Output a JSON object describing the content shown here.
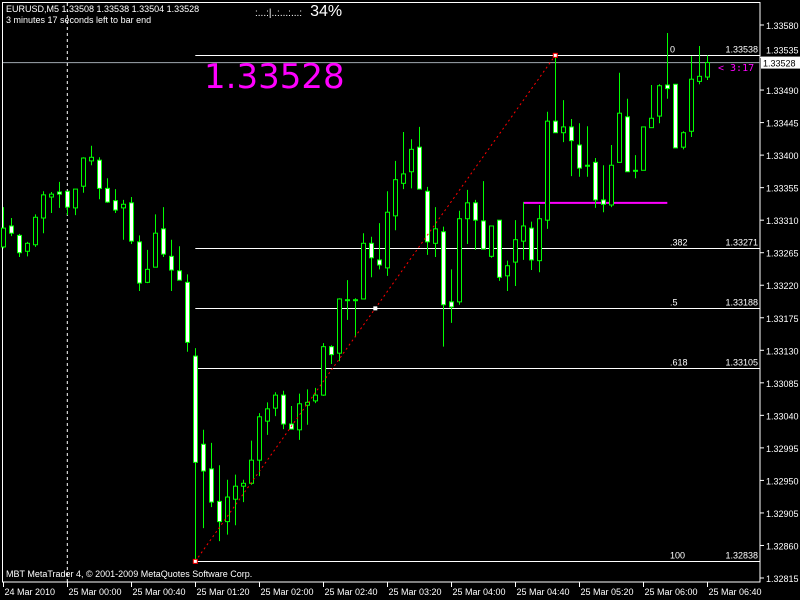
{
  "header": {
    "symbol_line": "EURUSD,M5  1.33508 1.33538 1.33504 1.33528",
    "countdown_line": "3 minutes 17 seconds left to bar end",
    "progress_dots": ":...:|..:...:...:",
    "progress_percent": "34%",
    "big_price": "1.33528",
    "bar_timer": "< 3:17",
    "copyright": "MBT MetaTrader 4, © 2001-2009 MetaQuotes Software Corp."
  },
  "colors": {
    "background": "#000000",
    "candle_outline": "#00ff00",
    "bear_body": "#ffffff",
    "bull_body": "#000000",
    "fib_lines": "#ffffff",
    "trendline": "#ff0000",
    "highlight": "#ff00ff",
    "bid_line": "#a0a8b0"
  },
  "chart_data": {
    "type": "candlestick",
    "symbol": "EURUSD",
    "timeframe": "M5",
    "ylim": [
      1.32815,
      1.3358
    ],
    "y_ticks": [
      "1.33580",
      "1.33535",
      "1.33490",
      "1.33445",
      "1.33400",
      "1.33355",
      "1.33310",
      "1.33265",
      "1.33220",
      "1.33175",
      "1.33130",
      "1.33085",
      "1.33040",
      "1.32995",
      "1.32950",
      "1.32905",
      "1.32860",
      "1.32815"
    ],
    "x_ticks": [
      {
        "bar": 0,
        "label": "24 Mar 2010"
      },
      {
        "bar": 8,
        "label": "25 Mar 00:00"
      },
      {
        "bar": 16,
        "label": "25 Mar 00:40"
      },
      {
        "bar": 24,
        "label": "25 Mar 01:20"
      },
      {
        "bar": 32,
        "label": "25 Mar 02:00"
      },
      {
        "bar": 40,
        "label": "25 Mar 02:40"
      },
      {
        "bar": 48,
        "label": "25 Mar 03:20"
      },
      {
        "bar": 56,
        "label": "25 Mar 04:00"
      },
      {
        "bar": 64,
        "label": "25 Mar 04:40"
      },
      {
        "bar": 72,
        "label": "25 Mar 05:20"
      },
      {
        "bar": 80,
        "label": "25 Mar 06:00"
      },
      {
        "bar": 88,
        "label": "25 Mar 06:40"
      }
    ],
    "period_separator_bar": 8,
    "bid": "1.33528",
    "ohlc_fields": [
      "open",
      "high",
      "low",
      "close"
    ],
    "candles": [
      [
        1.33273,
        1.33328,
        1.33271,
        1.33299
      ],
      [
        1.33302,
        1.33313,
        1.33288,
        1.33292
      ],
      [
        1.33289,
        1.33291,
        1.33259,
        1.33265
      ],
      [
        1.33267,
        1.3328,
        1.3326,
        1.33278
      ],
      [
        1.33276,
        1.33318,
        1.33273,
        1.33314
      ],
      [
        1.33313,
        1.3335,
        1.33292,
        1.33345
      ],
      [
        1.33342,
        1.33349,
        1.3332,
        1.33346
      ],
      [
        1.33349,
        1.33363,
        1.33327,
        1.33346
      ],
      [
        1.3335,
        1.3335,
        1.33317,
        1.33328
      ],
      [
        1.33327,
        1.33353,
        1.33317,
        1.33353
      ],
      [
        1.33357,
        1.33397,
        1.33348,
        1.33396
      ],
      [
        1.33392,
        1.33413,
        1.33386,
        1.33397
      ],
      [
        1.33393,
        1.33397,
        1.33339,
        1.33354
      ],
      [
        1.33354,
        1.33368,
        1.33334,
        1.33335
      ],
      [
        1.33337,
        1.33353,
        1.3332,
        1.33324
      ],
      [
        1.33327,
        1.33338,
        1.33283,
        1.33332
      ],
      [
        1.33334,
        1.33342,
        1.33277,
        1.33281
      ],
      [
        1.3328,
        1.33289,
        1.33212,
        1.33223
      ],
      [
        1.33224,
        1.33269,
        1.33223,
        1.33242
      ],
      [
        1.33245,
        1.33318,
        1.33245,
        1.33292
      ],
      [
        1.33298,
        1.33328,
        1.33259,
        1.33263
      ],
      [
        1.3326,
        1.33283,
        1.33212,
        1.33241
      ],
      [
        1.3324,
        1.33274,
        1.33227,
        1.33227
      ],
      [
        1.33224,
        1.33235,
        1.33128,
        1.33141
      ],
      [
        1.33122,
        1.33133,
        1.32838,
        1.32975
      ],
      [
        1.33,
        1.3302,
        1.32884,
        1.32963
      ],
      [
        1.32966,
        1.33002,
        1.32913,
        1.3292
      ],
      [
        1.32921,
        1.32971,
        1.32866,
        1.32893
      ],
      [
        1.32893,
        1.32951,
        1.32875,
        1.32927
      ],
      [
        1.32924,
        1.32958,
        1.32888,
        1.32942
      ],
      [
        1.32942,
        1.32951,
        1.3292,
        1.32946
      ],
      [
        1.32946,
        1.33005,
        1.32944,
        1.32978
      ],
      [
        1.32978,
        1.33043,
        1.32956,
        1.33038
      ],
      [
        1.33032,
        1.33058,
        1.33013,
        1.33049
      ],
      [
        1.3305,
        1.33072,
        1.33039,
        1.33068
      ],
      [
        1.33068,
        1.33074,
        1.33021,
        1.33028
      ],
      [
        1.33028,
        1.33053,
        1.33021,
        1.33021
      ],
      [
        1.3302,
        1.3307,
        1.33006,
        1.33056
      ],
      [
        1.33054,
        1.33076,
        1.33027,
        1.33058
      ],
      [
        1.3306,
        1.33078,
        1.33057,
        1.33068
      ],
      [
        1.33068,
        1.3314,
        1.33067,
        1.33135
      ],
      [
        1.33135,
        1.33137,
        1.33111,
        1.33124
      ],
      [
        1.33126,
        1.33202,
        1.33115,
        1.33201
      ],
      [
        1.332,
        1.33227,
        1.33172,
        1.332
      ],
      [
        1.332,
        1.33202,
        1.33148,
        1.332
      ],
      [
        1.33201,
        1.33292,
        1.33201,
        1.33278
      ],
      [
        1.33278,
        1.33287,
        1.33231,
        1.33258
      ],
      [
        1.33255,
        1.33306,
        1.33242,
        1.33248
      ],
      [
        1.33244,
        1.3335,
        1.33233,
        1.33321
      ],
      [
        1.33316,
        1.33392,
        1.33296,
        1.33366
      ],
      [
        1.33361,
        1.33432,
        1.33353,
        1.33374
      ],
      [
        1.33377,
        1.33422,
        1.33354,
        1.33408
      ],
      [
        1.33411,
        1.33439,
        1.33353,
        1.33353
      ],
      [
        1.3335,
        1.33356,
        1.33262,
        1.3328
      ],
      [
        1.33278,
        1.33328,
        1.33259,
        1.33298
      ],
      [
        1.33294,
        1.33301,
        1.33135,
        1.33193
      ],
      [
        1.33197,
        1.33242,
        1.33168,
        1.3319
      ],
      [
        1.33197,
        1.33323,
        1.33193,
        1.33312
      ],
      [
        1.33312,
        1.33352,
        1.33277,
        1.33334
      ],
      [
        1.33334,
        1.33338,
        1.33269,
        1.3331
      ],
      [
        1.33309,
        1.33364,
        1.3327,
        1.3327
      ],
      [
        1.3326,
        1.33302,
        1.33258,
        1.33302
      ],
      [
        1.3331,
        1.3331,
        1.33226,
        1.33231
      ],
      [
        1.33233,
        1.33254,
        1.33212,
        1.33247
      ],
      [
        1.33252,
        1.3331,
        1.33219,
        1.33283
      ],
      [
        1.33281,
        1.33335,
        1.33255,
        1.33302
      ],
      [
        1.33299,
        1.33308,
        1.33241,
        1.33255
      ],
      [
        1.33254,
        1.33331,
        1.33238,
        1.33312
      ],
      [
        1.3331,
        1.3346,
        1.33298,
        1.33447
      ],
      [
        1.33447,
        1.33538,
        1.33431,
        1.33431
      ],
      [
        1.33431,
        1.33476,
        1.33418,
        1.33439
      ],
      [
        1.33439,
        1.3345,
        1.33371,
        1.3342
      ],
      [
        1.33414,
        1.33444,
        1.3337,
        1.33382
      ],
      [
        1.33386,
        1.3344,
        1.3337,
        1.33386
      ],
      [
        1.3339,
        1.33396,
        1.33327,
        1.33338
      ],
      [
        1.33338,
        1.33386,
        1.33321,
        1.33332
      ],
      [
        1.33331,
        1.33414,
        1.33328,
        1.33386
      ],
      [
        1.3339,
        1.33514,
        1.3339,
        1.33458
      ],
      [
        1.33453,
        1.33478,
        1.33377,
        1.33377
      ],
      [
        1.33379,
        1.334,
        1.33368,
        1.33379
      ],
      [
        1.33379,
        1.33439,
        1.33379,
        1.33439
      ],
      [
        1.33438,
        1.33497,
        1.33438,
        1.33451
      ],
      [
        1.33454,
        1.33498,
        1.33444,
        1.33496
      ],
      [
        1.33497,
        1.33569,
        1.33478,
        1.33492
      ],
      [
        1.33498,
        1.33498,
        1.3341,
        1.3341
      ],
      [
        1.33411,
        1.33433,
        1.33408,
        1.33431
      ],
      [
        1.33433,
        1.33537,
        1.33425,
        1.33505
      ],
      [
        1.33502,
        1.33551,
        1.33498,
        1.33509
      ],
      [
        1.33508,
        1.33538,
        1.33504,
        1.33528
      ]
    ],
    "fibonacci": {
      "from_bar": 24,
      "to_bar": 69,
      "levels": [
        {
          "label": "0",
          "value": "1.33538"
        },
        {
          "label": ".382",
          "value": "1.33271"
        },
        {
          "label": ".5",
          "value": "1.33188"
        },
        {
          "label": ".618",
          "value": "1.33105"
        },
        {
          "label": "100",
          "value": "1.32838"
        }
      ]
    },
    "trendline": {
      "bar_start": 24,
      "price_start": 1.32838,
      "bar_end": 69,
      "price_end": 1.33538
    },
    "magenta_level": {
      "price": 1.33334,
      "bar_start": 65,
      "bar_end": 83
    }
  }
}
